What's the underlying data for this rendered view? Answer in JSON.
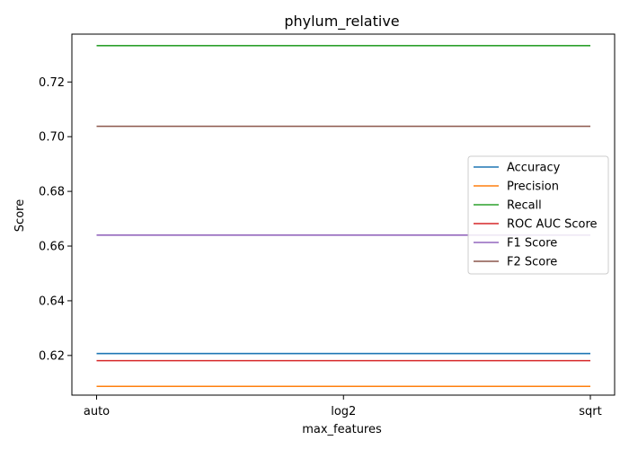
{
  "chart_data": {
    "type": "line",
    "title": "phylum_relative",
    "xlabel": "max_features",
    "ylabel": "Score",
    "categories": [
      "auto",
      "log2",
      "sqrt"
    ],
    "ylim": [
      0.6055,
      0.7375
    ],
    "yticks": [
      0.62,
      0.64,
      0.66,
      0.68,
      0.7,
      0.72
    ],
    "ytick_labels": [
      "0.62",
      "0.64",
      "0.66",
      "0.68",
      "0.70",
      "0.72"
    ],
    "grid": false,
    "legend_position": "center-right",
    "series": [
      {
        "name": "Accuracy",
        "color": "#1f77b4",
        "values": [
          0.6207,
          0.6207,
          0.6207
        ]
      },
      {
        "name": "Precision",
        "color": "#ff7f0e",
        "values": [
          0.6087,
          0.6087,
          0.6087
        ]
      },
      {
        "name": "Recall",
        "color": "#2ca02c",
        "values": [
          0.7333,
          0.7333,
          0.7333
        ]
      },
      {
        "name": "ROC AUC Score",
        "color": "#d62728",
        "values": [
          0.6181,
          0.6181,
          0.6181
        ]
      },
      {
        "name": "F1 Score",
        "color": "#9467bd",
        "values": [
          0.664,
          0.664,
          0.664
        ]
      },
      {
        "name": "F2 Score",
        "color": "#8c564b",
        "values": [
          0.7038,
          0.7038,
          0.7038
        ]
      }
    ]
  }
}
